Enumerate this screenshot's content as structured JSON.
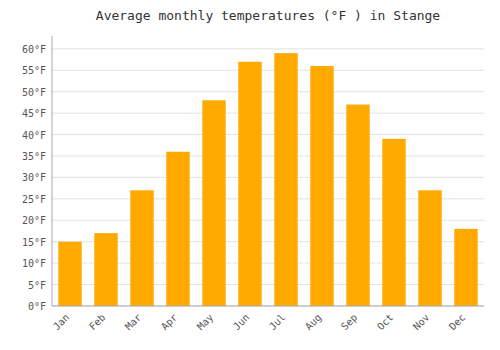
{
  "chart_data": {
    "type": "bar",
    "title": "Average monthly temperatures (°F ) in Stange",
    "categories": [
      "Jan",
      "Feb",
      "Mar",
      "Apr",
      "May",
      "Jun",
      "Jul",
      "Aug",
      "Sep",
      "Oct",
      "Nov",
      "Dec"
    ],
    "values": [
      15,
      17,
      27,
      36,
      48,
      57,
      59,
      56,
      47,
      39,
      27,
      18
    ],
    "color": "#FFAA00",
    "ylim": [
      0,
      63
    ],
    "yticks": [
      {
        "value": 0,
        "label": "0°F"
      },
      {
        "value": 5,
        "label": "5°F"
      },
      {
        "value": 10,
        "label": "10°F"
      },
      {
        "value": 15,
        "label": "15°F"
      },
      {
        "value": 20,
        "label": "20°F"
      },
      {
        "value": 25,
        "label": "25°F"
      },
      {
        "value": 30,
        "label": "30°F"
      },
      {
        "value": 35,
        "label": "35°F"
      },
      {
        "value": 40,
        "label": "40°F"
      },
      {
        "value": 45,
        "label": "45°F"
      },
      {
        "value": 50,
        "label": "50°F"
      },
      {
        "value": 55,
        "label": "55°F"
      },
      {
        "value": 60,
        "label": "60°F"
      }
    ],
    "grid": true
  }
}
